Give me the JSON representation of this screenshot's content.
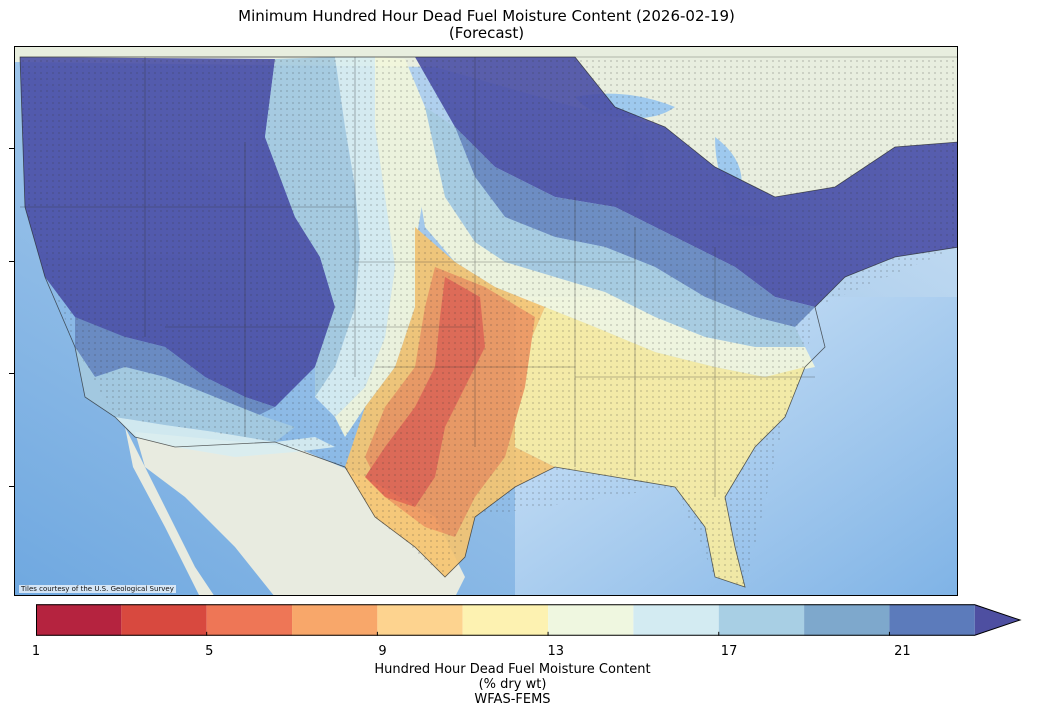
{
  "title": {
    "line1": "Minimum Hundred Hour Dead Fuel Moisture Content (2026-02-19)",
    "line2": "(Forecast)"
  },
  "map": {
    "attribution": "Tiles courtesy of the U.S. Geological Survey",
    "basemap_colors": {
      "ocean": "#cfe3f4",
      "land": "#eaeee2",
      "mexico": "#e8ebe0"
    },
    "fuel_moisture_colors": {
      "very_wet": "#4a4fa6",
      "wet": "#6787bf",
      "moist": "#a6cbe0",
      "moderate": "#d9eef1",
      "dry_mid": "#f3f7dc",
      "dry": "#f9ec9f",
      "drier": "#f7c56f",
      "very_dry": "#f09559",
      "extreme": "#e46249"
    }
  },
  "colorbar": {
    "min": 1,
    "max": 23,
    "extend": "max",
    "bins": [
      {
        "from": 1,
        "to": 3,
        "color": "#b5233f"
      },
      {
        "from": 3,
        "to": 5,
        "color": "#d8493f"
      },
      {
        "from": 5,
        "to": 7,
        "color": "#ee7656"
      },
      {
        "from": 7,
        "to": 9,
        "color": "#f8a76a"
      },
      {
        "from": 9,
        "to": 11,
        "color": "#fdd38f"
      },
      {
        "from": 11,
        "to": 13,
        "color": "#fdf2b1"
      },
      {
        "from": 13,
        "to": 15,
        "color": "#eff7e0"
      },
      {
        "from": 15,
        "to": 17,
        "color": "#d3ebf2"
      },
      {
        "from": 17,
        "to": 19,
        "color": "#a8cfe4"
      },
      {
        "from": 19,
        "to": 21,
        "color": "#7ea8cc"
      },
      {
        "from": 21,
        "to": 23,
        "color": "#5c7bbb"
      }
    ],
    "extend_color": "#4e4fa1",
    "tick_labels": [
      "1",
      "5",
      "9",
      "13",
      "17",
      "21"
    ],
    "label_line1": "Hundred Hour Dead Fuel Moisture Content",
    "label_line2": "(% dry wt)",
    "label_line3": "WFAS-FEMS"
  }
}
